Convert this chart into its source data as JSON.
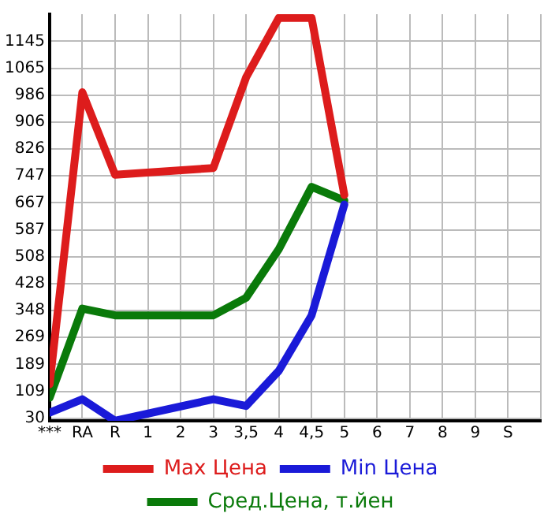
{
  "chart_data": {
    "type": "line",
    "categories": [
      "***",
      "RA",
      "R",
      "1",
      "2",
      "3",
      "3,5",
      "4",
      "4,5",
      "5",
      "6",
      "7",
      "8",
      "9",
      "S"
    ],
    "series": [
      {
        "name": "Max Цена",
        "color": "#dd1c1c",
        "values": [
          130,
          994,
          750,
          null,
          null,
          770,
          1038,
          1214,
          1214,
          690,
          null,
          null,
          null,
          null,
          null
        ]
      },
      {
        "name": "Min Цена",
        "color": "#1a1ad8",
        "values": [
          46,
          86,
          22,
          null,
          null,
          86,
          66,
          170,
          334,
          662,
          null,
          null,
          null,
          null,
          null
        ]
      },
      {
        "name": "Сред.Цена, т.йен",
        "color": "#0a7a0a",
        "values": [
          90,
          354,
          334,
          null,
          null,
          334,
          386,
          530,
          714,
          674,
          null,
          null,
          null,
          null,
          null
        ]
      }
    ],
    "ylim": [
      22,
      1225
    ],
    "yticks": [
      30,
      109,
      189,
      269,
      348,
      428,
      508,
      587,
      667,
      747,
      826,
      906,
      986,
      1065,
      1145
    ],
    "grid": true,
    "legend": "bottom",
    "marker": "none",
    "line_style": "solid"
  }
}
